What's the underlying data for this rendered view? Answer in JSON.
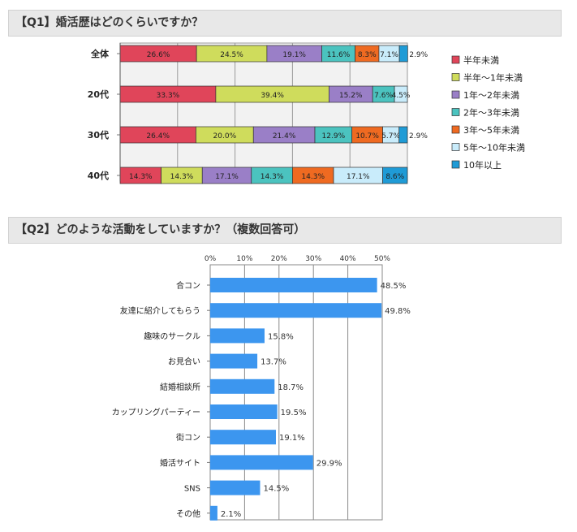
{
  "q1": {
    "heading": "【Q1】婚活歴はどのくらいですか？"
  },
  "q2": {
    "heading": "【Q2】どのような活動をしていますか？（複数回答可）"
  },
  "chart_data": [
    {
      "type": "bar",
      "orientation": "horizontal",
      "stacked": true,
      "categories": [
        "全体",
        "20代",
        "30代",
        "40代"
      ],
      "series": [
        {
          "name": "半年未満",
          "color": "#e0455a",
          "values": [
            26.6,
            33.3,
            26.4,
            14.3
          ]
        },
        {
          "name": "半年〜1年未満",
          "color": "#cfdc5c",
          "values": [
            24.5,
            39.4,
            20.0,
            14.3
          ]
        },
        {
          "name": "1年〜2年未満",
          "color": "#9a7fc7",
          "values": [
            19.1,
            15.2,
            21.4,
            17.1
          ]
        },
        {
          "name": "2年〜3年未満",
          "color": "#4bc3bf",
          "values": [
            11.6,
            7.6,
            12.9,
            14.3
          ]
        },
        {
          "name": "3年〜5年未満",
          "color": "#ef6a21",
          "values": [
            8.3,
            null,
            10.7,
            14.3
          ]
        },
        {
          "name": "5年〜10年未満",
          "color": "#c9ecfb",
          "values": [
            7.1,
            4.5,
            5.7,
            17.1
          ]
        },
        {
          "name": "10年以上",
          "color": "#1f9bd6",
          "values": [
            2.9,
            null,
            2.9,
            8.6
          ]
        }
      ],
      "value_labels": [
        [
          "26.6%",
          "24.5%",
          "19.1%",
          "11.6%",
          "8.3%",
          "7.1%",
          "2.9%"
        ],
        [
          "33.3%",
          "39.4%",
          "15.2%",
          "7.6%",
          "",
          "4.5%",
          ""
        ],
        [
          "26.4%",
          "20.0%",
          "21.4%",
          "12.9%",
          "10.7%",
          "5.7%",
          "2.9%"
        ],
        [
          "14.3%",
          "14.3%",
          "17.1%",
          "14.3%",
          "14.3%",
          "17.1%",
          "8.6%"
        ]
      ],
      "xlim": [
        0,
        100
      ],
      "grid": true,
      "legend_position": "right"
    },
    {
      "type": "bar",
      "orientation": "horizontal",
      "categories": [
        "合コン",
        "友達に紹介してもらう",
        "趣味のサークル",
        "お見合い",
        "結婚相談所",
        "カップリングパーティー",
        "街コン",
        "婚活サイト",
        "SNS",
        "その他"
      ],
      "values": [
        48.5,
        49.8,
        15.8,
        13.7,
        18.7,
        19.5,
        19.1,
        29.9,
        14.5,
        2.1
      ],
      "value_labels": [
        "48.5%",
        "49.8%",
        "15.8%",
        "13.7%",
        "18.7%",
        "19.5%",
        "19.1%",
        "29.9%",
        "14.5%",
        "2.1%"
      ],
      "ticks": [
        "0%",
        "10%",
        "20%",
        "30%",
        "40%",
        "50%"
      ],
      "xlim": [
        0,
        50
      ],
      "color": "#3c96ef",
      "grid": true
    }
  ]
}
